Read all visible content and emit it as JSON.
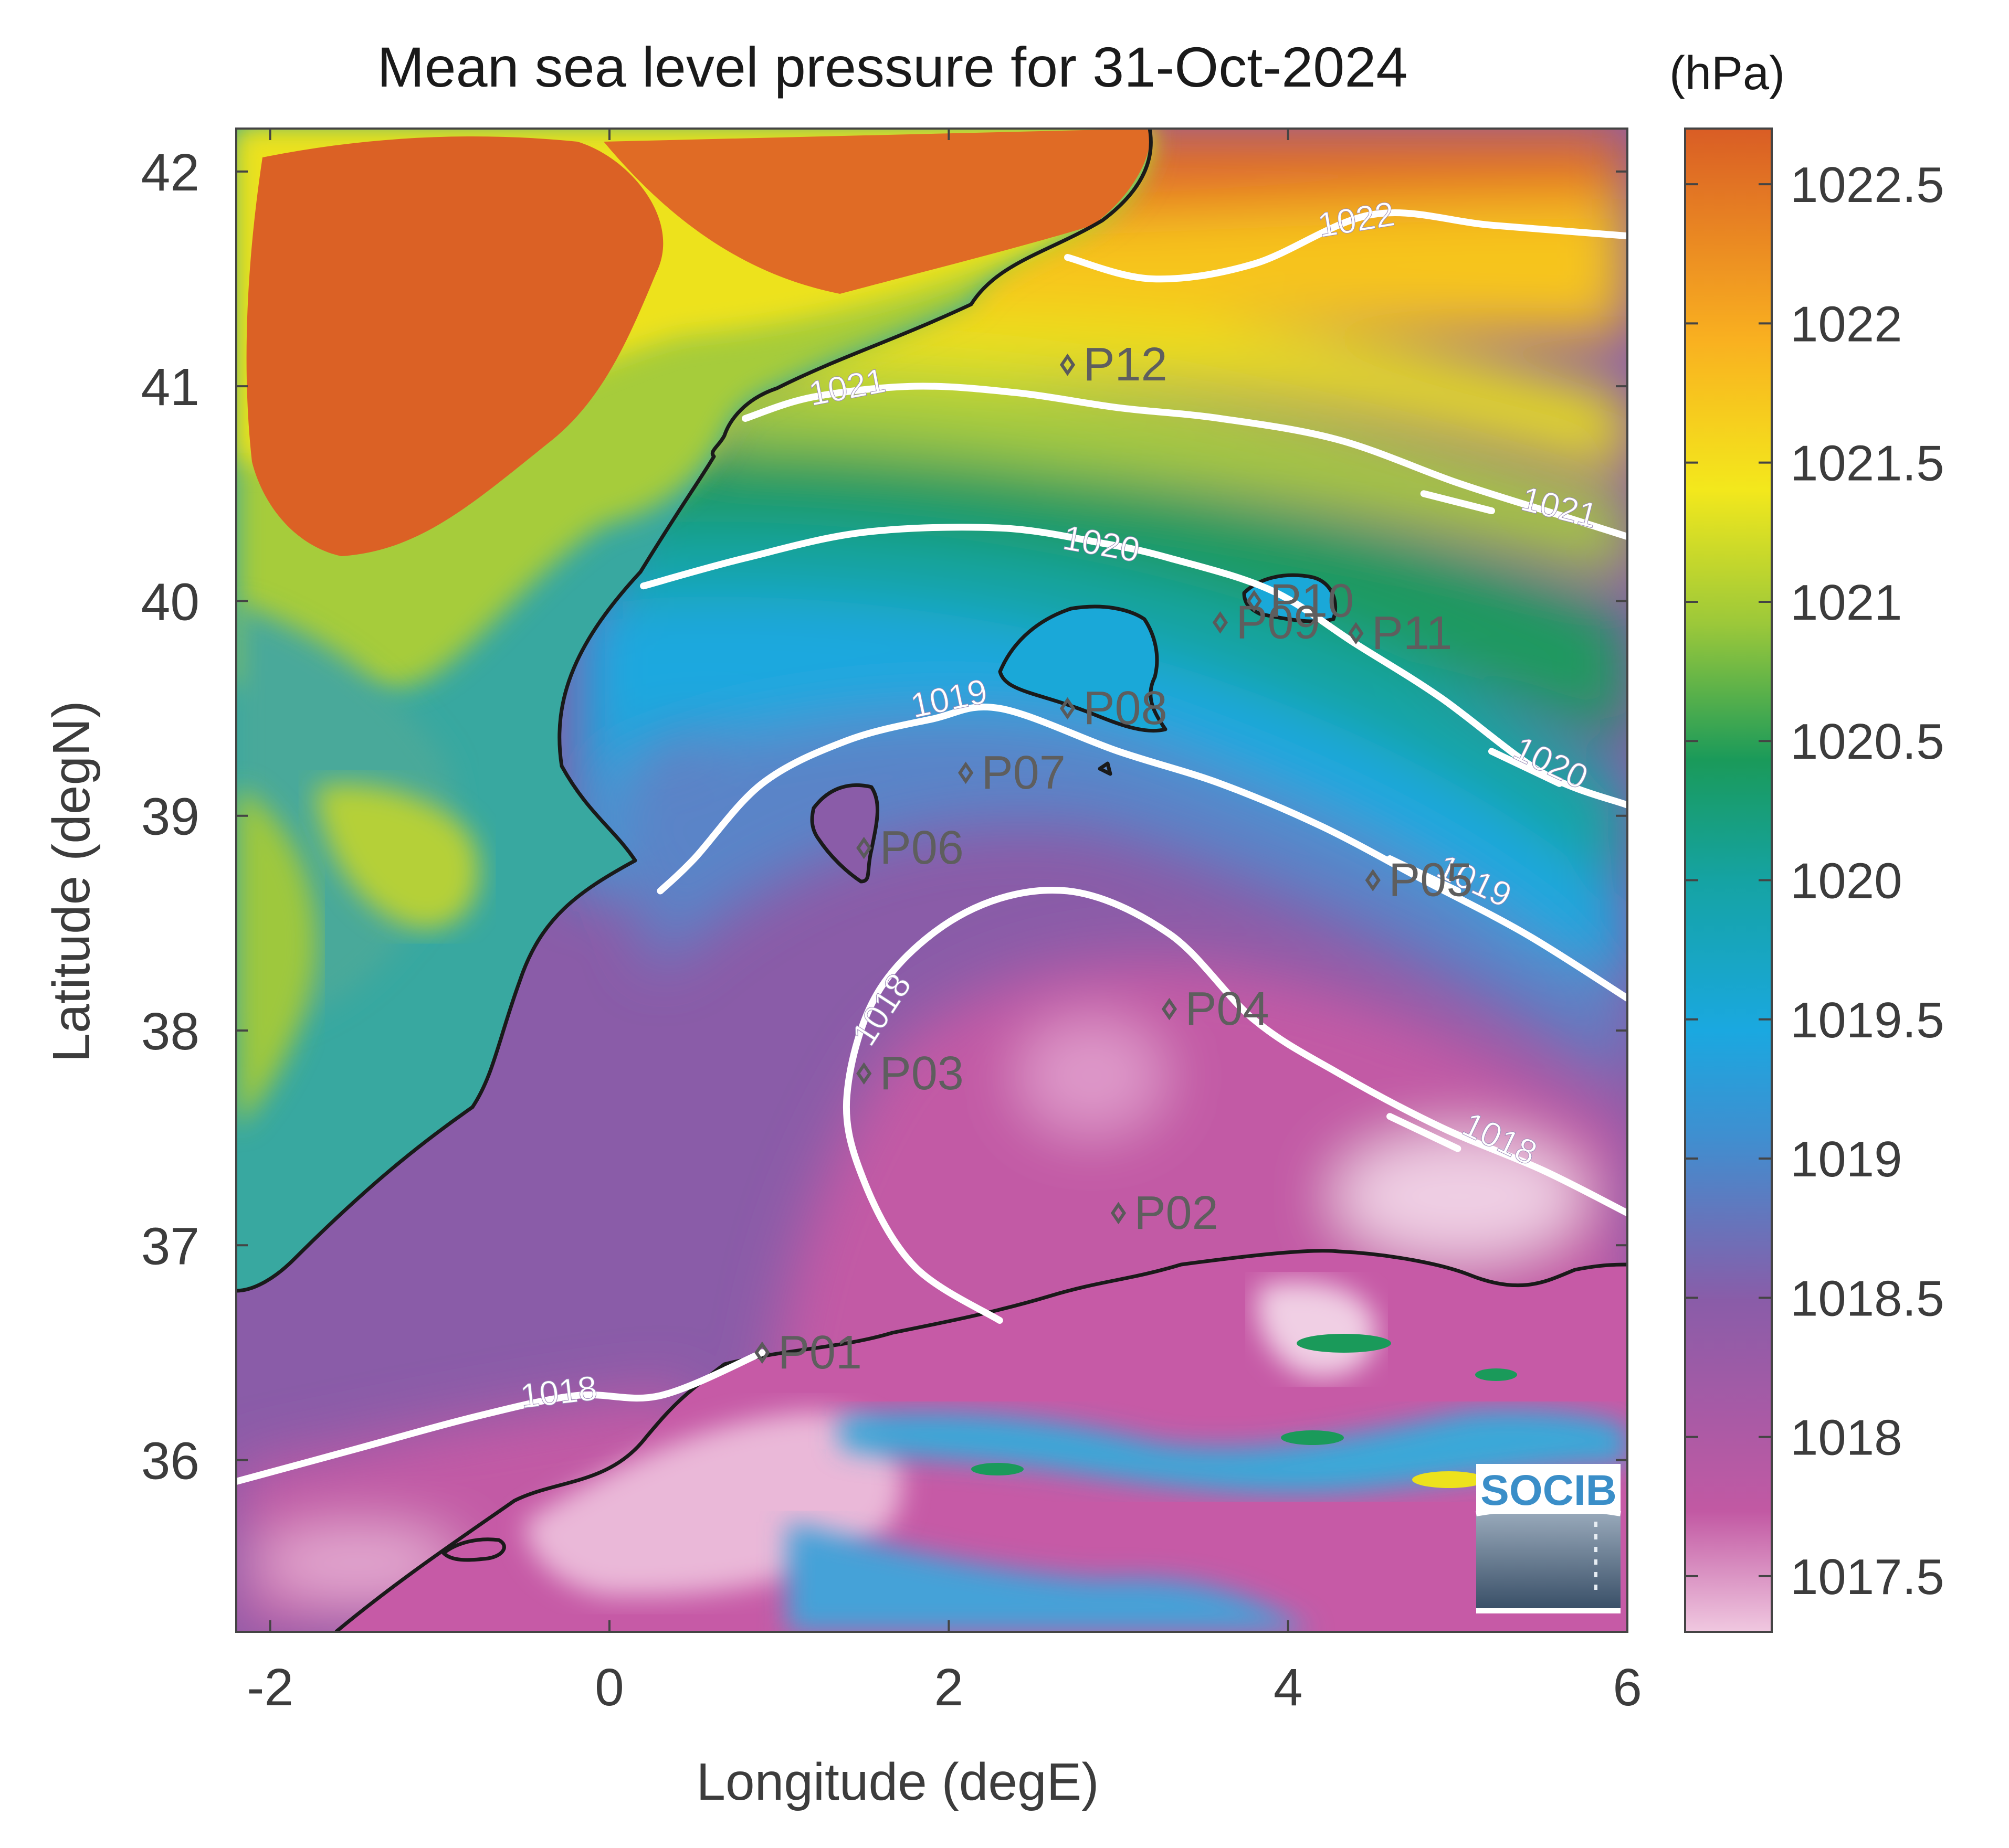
{
  "title": "Mean sea level pressure for 31-Oct-2024",
  "colorbar": {
    "unit": "(hPa)",
    "ticks": [
      1022.5,
      1022,
      1021.5,
      1021,
      1020.5,
      1020,
      1019.5,
      1019,
      1018.5,
      1018,
      1017.5
    ],
    "tick_labels": [
      "1022.5",
      "1022",
      "1021.5",
      "1021",
      "1020.5",
      "1020",
      "1019.5",
      "1019",
      "1018.5",
      "1018",
      "1017.5"
    ],
    "range": [
      1017.3,
      1022.7
    ],
    "colors": [
      "#f0c8e0",
      "#c259a3",
      "#8a5ca8",
      "#3f8fd0",
      "#1aa8e0",
      "#15a3a3",
      "#1a9a5a",
      "#9bc83a",
      "#f3e81c",
      "#f9b020",
      "#d95d25"
    ]
  },
  "axes": {
    "xlabel": "Longitude (degE)",
    "ylabel": "Latitude (degN)",
    "xlim": [
      -2.2,
      6.0
    ],
    "ylim": [
      35.2,
      42.2
    ],
    "xticks": [
      -2,
      0,
      2,
      4,
      6
    ],
    "xtick_labels": [
      "-2",
      "0",
      "2",
      "4",
      "6"
    ],
    "yticks": [
      36,
      37,
      38,
      39,
      40,
      41,
      42
    ],
    "ytick_labels": [
      "36",
      "37",
      "38",
      "39",
      "40",
      "41",
      "42"
    ]
  },
  "contours": [
    {
      "label": "1022",
      "points": [
        [
          2.7,
          41.6
        ],
        [
          3.2,
          41.5
        ],
        [
          3.8,
          41.57
        ],
        [
          4.5,
          41.8
        ],
        [
          5.2,
          41.75
        ],
        [
          6.0,
          41.7
        ]
      ],
      "label_at": [
        4.4,
        41.78
      ]
    },
    {
      "label": "1021",
      "points": [
        [
          0.8,
          40.85
        ],
        [
          1.2,
          40.95
        ],
        [
          1.8,
          41.0
        ],
        [
          2.4,
          40.97
        ],
        [
          3.0,
          40.9
        ],
        [
          3.6,
          40.85
        ],
        [
          4.3,
          40.75
        ],
        [
          5.0,
          40.55
        ],
        [
          5.6,
          40.4
        ],
        [
          6.0,
          40.3
        ]
      ],
      "label_at": [
        1.4,
        41.0
      ]
    },
    {
      "label": "1021",
      "points": [
        [
          4.8,
          40.5
        ],
        [
          5.2,
          40.42
        ]
      ],
      "label_at": [
        5.6,
        40.44
      ]
    },
    {
      "label": "1020",
      "points": [
        [
          0.2,
          40.07
        ],
        [
          0.8,
          40.2
        ],
        [
          1.5,
          40.32
        ],
        [
          2.3,
          40.34
        ],
        [
          2.9,
          40.27
        ],
        [
          3.3,
          40.2
        ],
        [
          3.9,
          40.05
        ],
        [
          4.4,
          39.8
        ],
        [
          4.9,
          39.55
        ],
        [
          5.5,
          39.2
        ],
        [
          6.0,
          39.05
        ]
      ],
      "label_at": [
        2.9,
        40.27
      ]
    },
    {
      "label": "1020",
      "points": [
        [
          5.2,
          39.3
        ],
        [
          5.6,
          39.15
        ]
      ],
      "label_at": [
        5.55,
        39.25
      ]
    },
    {
      "label": "1019",
      "points": [
        [
          0.3,
          38.65
        ],
        [
          0.5,
          38.8
        ],
        [
          0.9,
          39.15
        ],
        [
          1.4,
          39.35
        ],
        [
          1.9,
          39.45
        ],
        [
          2.3,
          39.5
        ],
        [
          3.0,
          39.3
        ],
        [
          3.6,
          39.15
        ],
        [
          4.2,
          38.95
        ],
        [
          4.8,
          38.7
        ],
        [
          5.4,
          38.45
        ],
        [
          6.0,
          38.15
        ]
      ],
      "label_at": [
        2.0,
        39.55
      ]
    },
    {
      "label": "1019",
      "points": [
        [
          4.6,
          38.8
        ],
        [
          5.0,
          38.65
        ]
      ],
      "label_at": [
        5.1,
        38.7
      ]
    },
    {
      "label": "1018",
      "points": [
        [
          2.3,
          36.65
        ],
        [
          1.8,
          36.9
        ],
        [
          1.5,
          37.3
        ],
        [
          1.4,
          37.7
        ],
        [
          1.6,
          38.2
        ],
        [
          2.1,
          38.55
        ],
        [
          2.7,
          38.65
        ],
        [
          3.3,
          38.45
        ],
        [
          3.8,
          38.05
        ],
        [
          4.3,
          37.8
        ],
        [
          4.9,
          37.55
        ],
        [
          5.5,
          37.35
        ],
        [
          6.0,
          37.15
        ]
      ],
      "label_at": [
        1.6,
        38.1
      ]
    },
    {
      "label": "1018",
      "points": [
        [
          4.6,
          37.6
        ],
        [
          5.0,
          37.45
        ]
      ],
      "label_at": [
        5.25,
        37.5
      ]
    },
    {
      "label": "1018",
      "points": [
        [
          -2.2,
          35.9
        ],
        [
          -1.5,
          36.05
        ],
        [
          -0.8,
          36.2
        ],
        [
          -0.2,
          36.3
        ],
        [
          0.3,
          36.3
        ],
        [
          0.9,
          36.5
        ]
      ],
      "label_at": [
        -0.3,
        36.32
      ]
    }
  ],
  "points": [
    {
      "label": "P01",
      "lon": 0.9,
      "lat": 36.5
    },
    {
      "label": "P02",
      "lon": 3.0,
      "lat": 37.15
    },
    {
      "label": "P03",
      "lon": 1.5,
      "lat": 37.8
    },
    {
      "label": "P04",
      "lon": 3.3,
      "lat": 38.1
    },
    {
      "label": "P05",
      "lon": 4.5,
      "lat": 38.7
    },
    {
      "label": "P06",
      "lon": 1.5,
      "lat": 38.85
    },
    {
      "label": "P07",
      "lon": 2.1,
      "lat": 39.2
    },
    {
      "label": "P08",
      "lon": 2.7,
      "lat": 39.5
    },
    {
      "label": "P09",
      "lon": 3.6,
      "lat": 39.9
    },
    {
      "label": "P10",
      "lon": 3.8,
      "lat": 40.0
    },
    {
      "label": "P11",
      "lon": 4.4,
      "lat": 39.85
    },
    {
      "label": "P12",
      "lon": 2.7,
      "lat": 41.1
    }
  ],
  "logo_text": "SOCIB"
}
